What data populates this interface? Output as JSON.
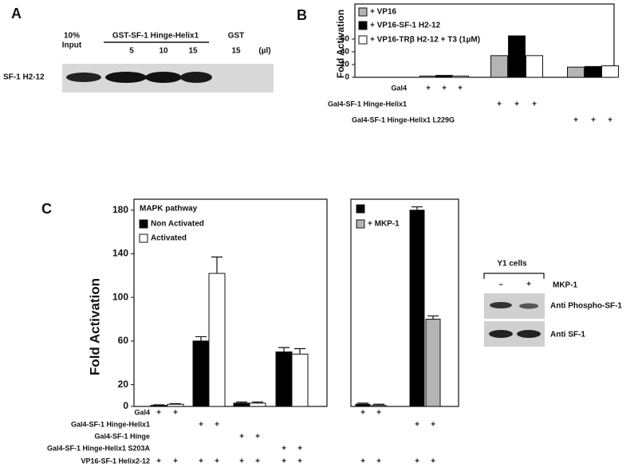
{
  "panels": {
    "A": {
      "letter": "A",
      "input_label": [
        "10%",
        "Input"
      ],
      "gst_fusion": "GST-SF-1 Hinge-Helix1",
      "gst": "GST",
      "volumes": [
        "5",
        "10",
        "15",
        "15"
      ],
      "unit": "(µl)",
      "row_label": "SF-1 H2-12"
    },
    "B": {
      "letter": "B"
    },
    "C": {
      "letter": "C"
    },
    "Y1": {
      "title": "Y1 cells",
      "minus": "–",
      "plus": "+",
      "condition": "MKP-1",
      "rows": [
        "Anti Phospho-SF-1",
        "Anti SF-1"
      ]
    }
  },
  "chart_data": [
    {
      "type": "bar",
      "y_label": "Fold Activation",
      "ylim": [
        0,
        115
      ],
      "yticks": [
        0,
        20,
        40,
        60
      ],
      "series": [
        {
          "name": "+ VP16",
          "color": "#b4b4b4",
          "values": [
            2,
            34,
            16
          ]
        },
        {
          "name": "+ VP16-SF-1 H2-12",
          "color": "#000000",
          "values": [
            3,
            65,
            17
          ]
        },
        {
          "name": "+ VP16-TRβ H2-12 + T3 (1µM)",
          "color": "#ffffff",
          "values": [
            2,
            34,
            18
          ]
        }
      ],
      "rows": [
        {
          "label": "Gal4",
          "signs": [
            "+",
            "+",
            "+",
            null,
            null,
            null,
            null,
            null,
            null
          ]
        },
        {
          "label": "Gal4-SF-1 Hinge-Helix1",
          "signs": [
            null,
            null,
            null,
            "+",
            "+",
            "+",
            null,
            null,
            null
          ]
        },
        {
          "label": "Gal4-SF-1 Hinge-Helix1 L229G",
          "signs": [
            null,
            null,
            null,
            null,
            null,
            null,
            "+",
            "+",
            "+"
          ]
        }
      ]
    },
    {
      "type": "bar",
      "title": "MAPK pathway",
      "y_label": "Fold Activation",
      "ylim": [
        0,
        190
      ],
      "yticks": [
        0,
        20,
        60,
        100,
        140,
        180
      ],
      "series": [
        {
          "name": "Non Activated",
          "color": "#000000",
          "values": [
            1,
            60,
            3,
            50
          ],
          "errors": [
            0.5,
            4,
            1,
            4
          ]
        },
        {
          "name": "Activated",
          "color": "#ffffff",
          "values": [
            2,
            122,
            3,
            48
          ],
          "errors": [
            0.5,
            15,
            1,
            5
          ]
        }
      ],
      "rows": [
        {
          "label": "Gal4",
          "signs": [
            "+",
            "+",
            null,
            null,
            null,
            null,
            null,
            null
          ]
        },
        {
          "label": "Gal4-SF-1 Hinge-Helix1",
          "signs": [
            null,
            null,
            "+",
            "+",
            null,
            null,
            null,
            null
          ]
        },
        {
          "label": "Gal4-SF-1 Hinge",
          "signs": [
            null,
            null,
            null,
            null,
            "+",
            "+",
            null,
            null
          ]
        },
        {
          "label": "Gal4-SF-1 Hinge-Helix1 S203A",
          "signs": [
            null,
            null,
            null,
            null,
            null,
            null,
            "+",
            "+"
          ]
        },
        {
          "label": "VP16-SF-1 Helix2-12",
          "signs": [
            "+",
            "+",
            "+",
            "+",
            "+",
            "+",
            "+",
            "+"
          ]
        }
      ]
    },
    {
      "type": "bar",
      "ylim": [
        0,
        190
      ],
      "series": [
        {
          "name": null,
          "color": "#000000",
          "values": [
            2,
            180
          ],
          "errors": [
            1,
            3
          ]
        },
        {
          "name": "+ MKP-1",
          "color": "#b4b4b4",
          "values": [
            1,
            80
          ],
          "errors": [
            1,
            3
          ]
        }
      ],
      "rows": [
        {
          "signs": [
            "+",
            "+",
            null,
            null
          ]
        },
        {
          "signs": [
            null,
            null,
            "+",
            "+"
          ]
        },
        {
          "signs": [
            null,
            null,
            null,
            null
          ]
        },
        {
          "signs": [
            null,
            null,
            null,
            null
          ]
        },
        {
          "signs": [
            "+",
            "+",
            "+",
            "+"
          ]
        }
      ]
    }
  ]
}
